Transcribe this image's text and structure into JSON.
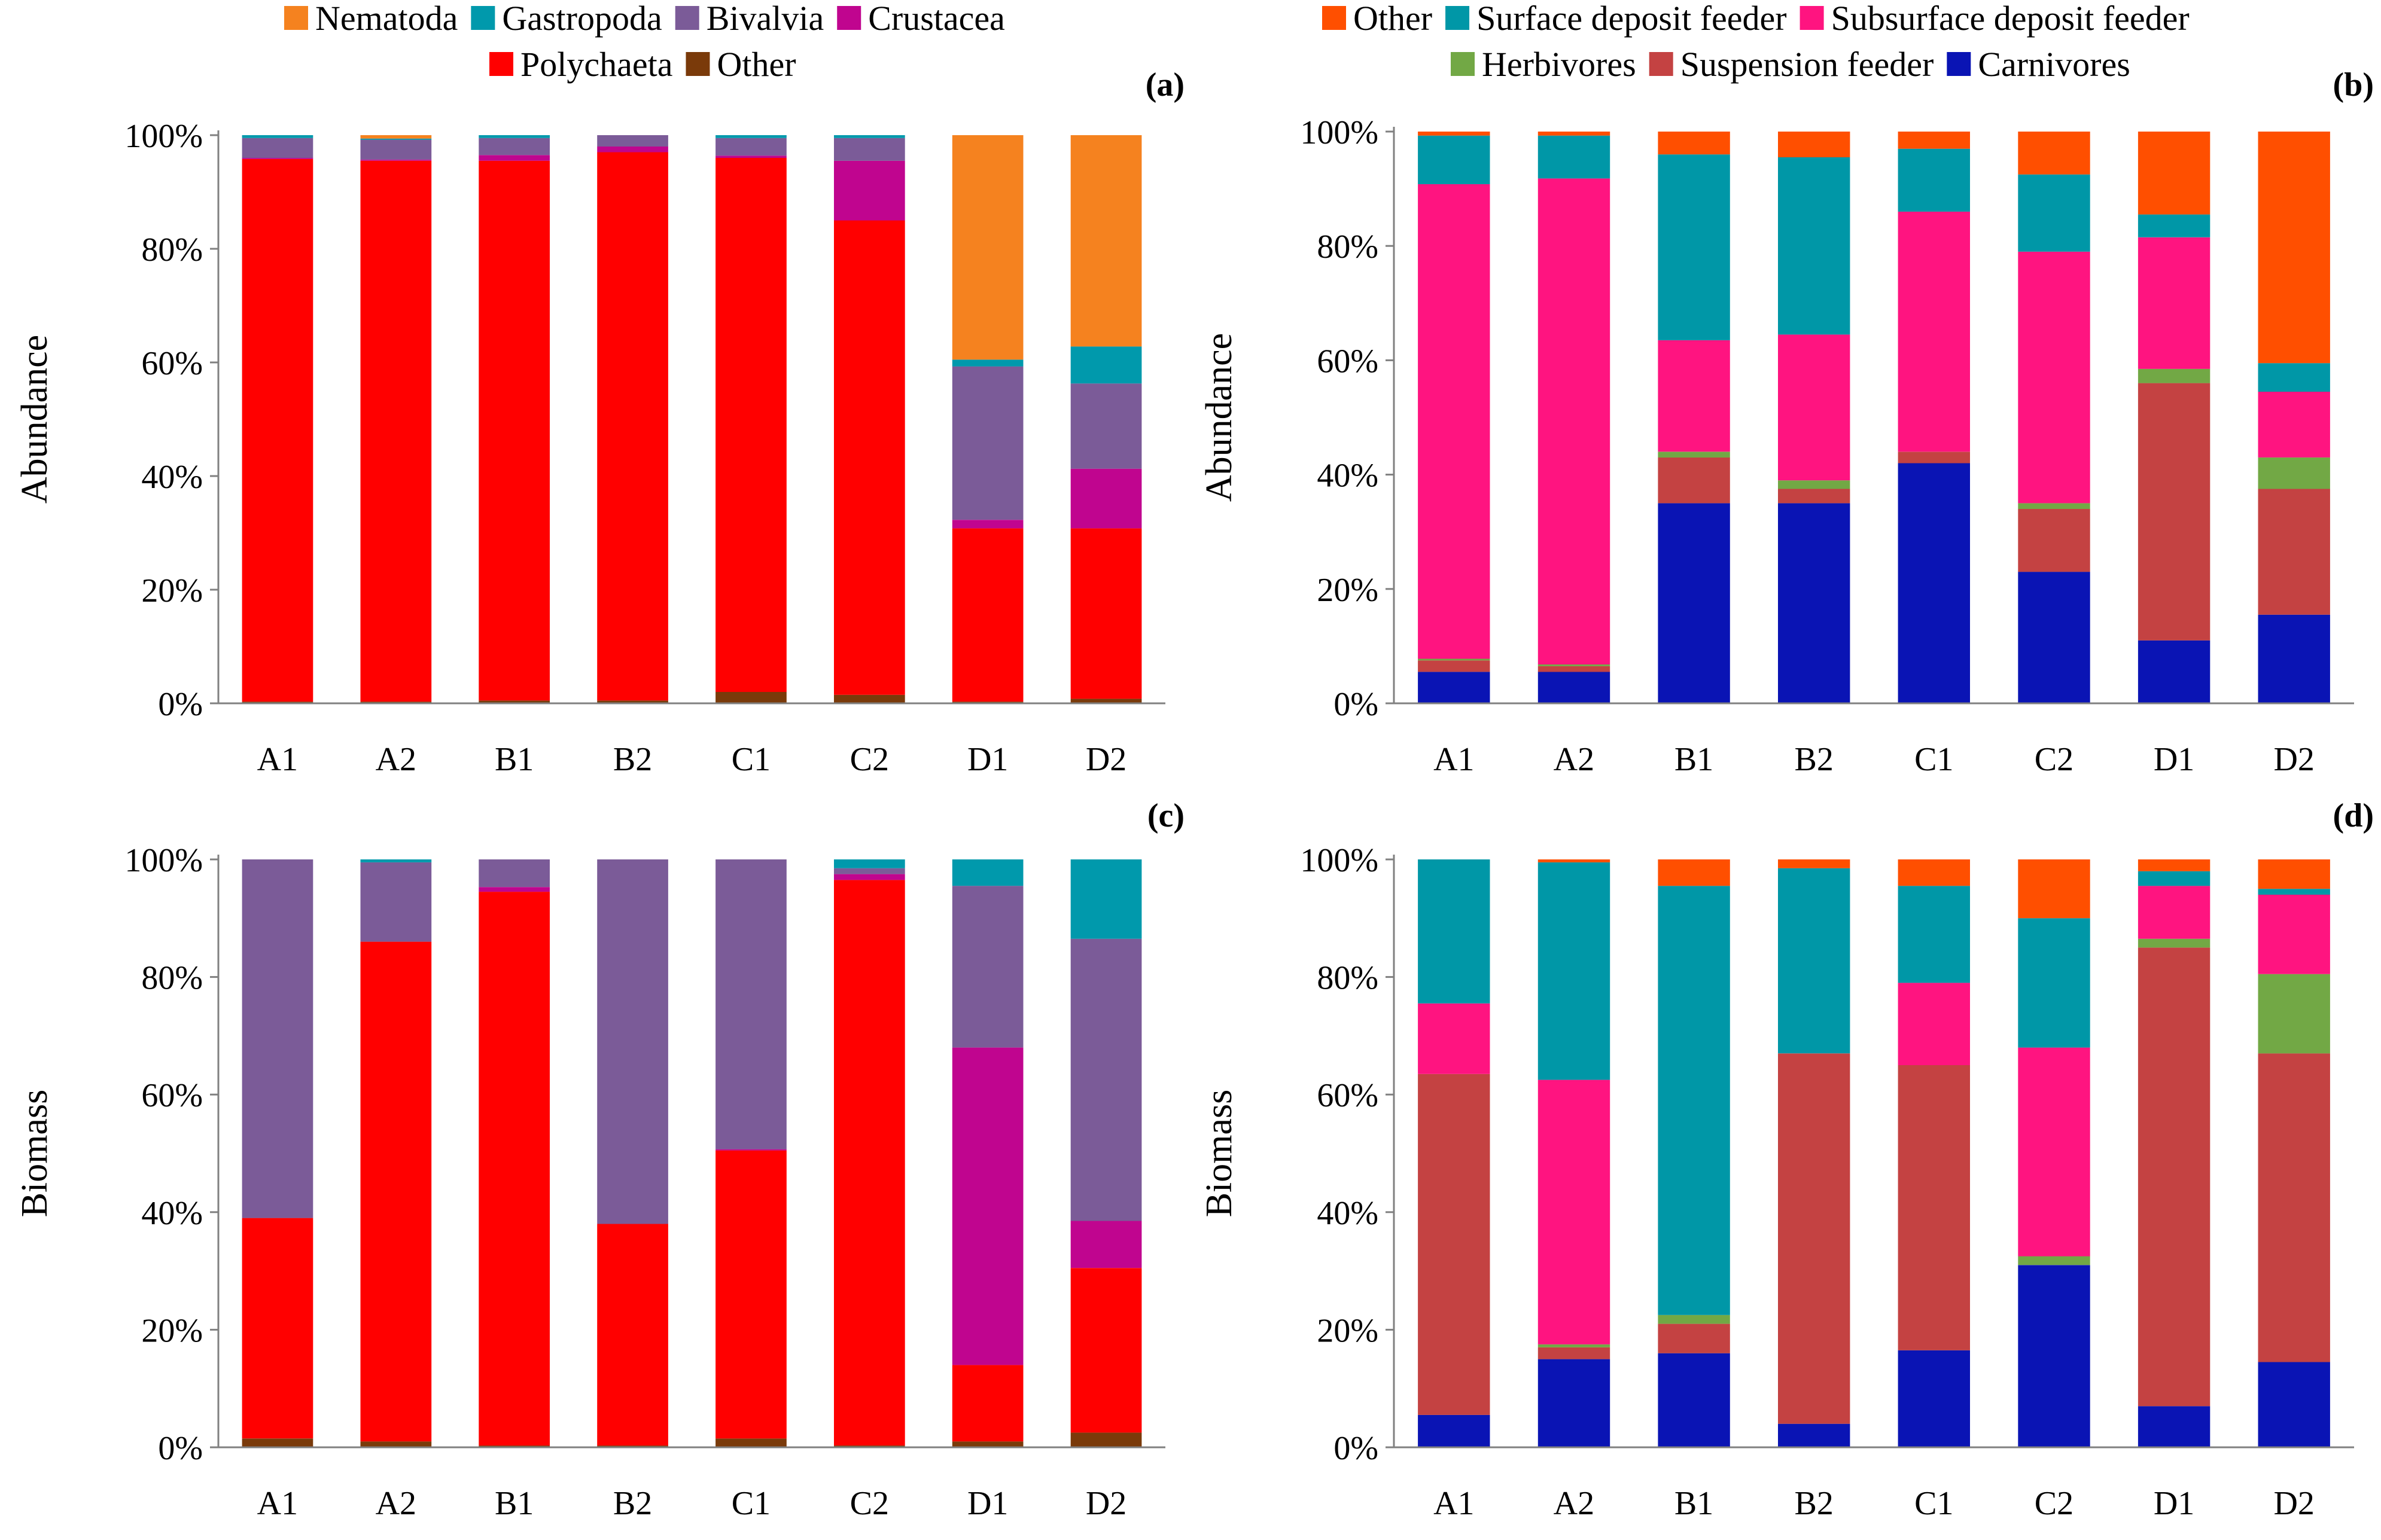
{
  "colors": {
    "Nematoda": "#F5821F",
    "Gastropoda": "#0099AC",
    "Bivalvia": "#7B5B98",
    "Crustacea": "#C0058F",
    "Polychaeta": "#FF0000",
    "Other_taxa": "#7A3A0A",
    "Other_func": "#FF4F00",
    "Surface deposit feeder": "#0097A7",
    "Subsurface deposit feeder": "#FF1480",
    "Herbivores": "#72A845",
    "Suspension feeder": "#C44242",
    "Carnivores": "#0A14B4"
  },
  "chart_data": [
    {
      "id": "a",
      "panel_label": "(a)",
      "type": "bar",
      "stacked": true,
      "ylabel": "Abundance",
      "ylim": [
        0,
        100
      ],
      "yticks": [
        "0%",
        "20%",
        "40%",
        "60%",
        "80%",
        "100%"
      ],
      "categories": [
        "A1",
        "A2",
        "B1",
        "B2",
        "C1",
        "C2",
        "D1",
        "D2"
      ],
      "legend": {
        "position": "top",
        "rows": [
          [
            "Nematoda",
            "Gastropoda",
            "Bivalvia",
            "Crustacea"
          ],
          [
            "Polychaeta",
            "Other"
          ]
        ],
        "color_keys": [
          [
            "Nematoda",
            "Gastropoda",
            "Bivalvia",
            "Crustacea"
          ],
          [
            "Polychaeta",
            "Other_taxa"
          ]
        ]
      },
      "series": [
        {
          "name": "Other",
          "color_key": "Other_taxa",
          "values": [
            0.3,
            0.3,
            0.5,
            0.5,
            2,
            1.5,
            0.3,
            0.8
          ]
        },
        {
          "name": "Polychaeta",
          "color_key": "Polychaeta",
          "values": [
            95.5,
            95.2,
            95,
            96.5,
            94,
            83.5,
            30.5,
            30
          ]
        },
        {
          "name": "Crustacea",
          "color_key": "Crustacea",
          "values": [
            0.2,
            0.2,
            1,
            1,
            0.4,
            10.5,
            1.5,
            10.5
          ]
        },
        {
          "name": "Bivalvia",
          "color_key": "Bivalvia",
          "values": [
            3.5,
            3.5,
            3,
            2,
            3.1,
            4,
            27,
            15
          ]
        },
        {
          "name": "Gastropoda",
          "color_key": "Gastropoda",
          "values": [
            0.5,
            0.2,
            0.5,
            0,
            0.5,
            0.5,
            1.2,
            6.5
          ]
        },
        {
          "name": "Nematoda",
          "color_key": "Nematoda",
          "values": [
            0,
            0.6,
            0,
            0,
            0,
            0,
            39.5,
            37.2
          ]
        }
      ]
    },
    {
      "id": "b",
      "panel_label": "(b)",
      "type": "bar",
      "stacked": true,
      "ylabel": "Abundance",
      "ylim": [
        0,
        100
      ],
      "yticks": [
        "0%",
        "20%",
        "40%",
        "60%",
        "80%",
        "100%"
      ],
      "categories": [
        "A1",
        "A2",
        "B1",
        "B2",
        "C1",
        "C2",
        "D1",
        "D2"
      ],
      "legend": {
        "position": "top",
        "rows": [
          [
            "Other",
            "Surface deposit feeder",
            "Subsurface deposit feeder"
          ],
          [
            "Herbivores",
            "Suspension feeder",
            "Carnivores"
          ]
        ],
        "color_keys": [
          [
            "Other_func",
            "Surface deposit feeder",
            "Subsurface deposit feeder"
          ],
          [
            "Herbivores",
            "Suspension feeder",
            "Carnivores"
          ]
        ]
      },
      "series": [
        {
          "name": "Carnivores",
          "color_key": "Carnivores",
          "values": [
            5.5,
            5.5,
            35,
            35,
            42,
            23,
            11,
            15.5
          ]
        },
        {
          "name": "Suspension feeder",
          "color_key": "Suspension feeder",
          "values": [
            2,
            1,
            8,
            2.5,
            2,
            11,
            45,
            22
          ]
        },
        {
          "name": "Herbivores",
          "color_key": "Herbivores",
          "values": [
            0.3,
            0.3,
            1,
            1.5,
            0,
            1,
            2.5,
            5.5
          ]
        },
        {
          "name": "Subsurface deposit feeder",
          "color_key": "Subsurface deposit feeder",
          "values": [
            83,
            85,
            19.5,
            25.5,
            42,
            44,
            23,
            11.5
          ]
        },
        {
          "name": "Surface deposit feeder",
          "color_key": "Surface deposit feeder",
          "values": [
            8.5,
            7.5,
            32.5,
            31,
            11,
            13.5,
            4,
            5
          ]
        },
        {
          "name": "Other",
          "color_key": "Other_func",
          "values": [
            0.7,
            0.7,
            4,
            4.5,
            3,
            7.5,
            14.5,
            40.5
          ]
        }
      ]
    },
    {
      "id": "c",
      "panel_label": "(c)",
      "type": "bar",
      "stacked": true,
      "ylabel": "Biomass",
      "ylim": [
        0,
        100
      ],
      "yticks": [
        "0%",
        "20%",
        "40%",
        "60%",
        "80%",
        "100%"
      ],
      "categories": [
        "A1",
        "A2",
        "B1",
        "B2",
        "C1",
        "C2",
        "D1",
        "D2"
      ],
      "series": [
        {
          "name": "Other",
          "color_key": "Other_taxa",
          "values": [
            1.5,
            1,
            0.3,
            0.3,
            1.5,
            0.3,
            1,
            2.5
          ]
        },
        {
          "name": "Polychaeta",
          "color_key": "Polychaeta",
          "values": [
            37.5,
            85,
            94.2,
            37.7,
            49,
            96.2,
            13,
            28
          ]
        },
        {
          "name": "Crustacea",
          "color_key": "Crustacea",
          "values": [
            0,
            0,
            0.8,
            0,
            0.2,
            1,
            54,
            8
          ]
        },
        {
          "name": "Bivalvia",
          "color_key": "Bivalvia",
          "values": [
            61,
            13.5,
            4.7,
            62,
            49.3,
            1,
            27.5,
            48
          ]
        },
        {
          "name": "Gastropoda",
          "color_key": "Gastropoda",
          "values": [
            0,
            0.5,
            0,
            0,
            0,
            1.5,
            4.5,
            13.5
          ]
        }
      ]
    },
    {
      "id": "d",
      "panel_label": "(d)",
      "type": "bar",
      "stacked": true,
      "ylabel": "Biomass",
      "ylim": [
        0,
        100
      ],
      "yticks": [
        "0%",
        "20%",
        "40%",
        "60%",
        "80%",
        "100%"
      ],
      "categories": [
        "A1",
        "A2",
        "B1",
        "B2",
        "C1",
        "C2",
        "D1",
        "D2"
      ],
      "series": [
        {
          "name": "Carnivores",
          "color_key": "Carnivores",
          "values": [
            5.5,
            15,
            16,
            4,
            16.5,
            31,
            7,
            14.5
          ]
        },
        {
          "name": "Suspension feeder",
          "color_key": "Suspension feeder",
          "values": [
            58,
            2,
            5,
            63,
            48.5,
            0,
            78,
            52.5
          ]
        },
        {
          "name": "Herbivores",
          "color_key": "Herbivores",
          "values": [
            0,
            0.5,
            1.5,
            0,
            0,
            1.5,
            1.5,
            13.5
          ]
        },
        {
          "name": "Subsurface deposit feeder",
          "color_key": "Subsurface deposit feeder",
          "values": [
            12,
            45,
            0,
            0,
            14,
            35.5,
            9,
            13.5
          ]
        },
        {
          "name": "Surface deposit feeder",
          "color_key": "Surface deposit feeder",
          "values": [
            24.5,
            37,
            73,
            31.5,
            16.5,
            22,
            2.5,
            1
          ]
        },
        {
          "name": "Other",
          "color_key": "Other_func",
          "values": [
            0,
            0.5,
            4.5,
            1.5,
            4.5,
            10,
            2,
            5
          ]
        }
      ]
    }
  ]
}
